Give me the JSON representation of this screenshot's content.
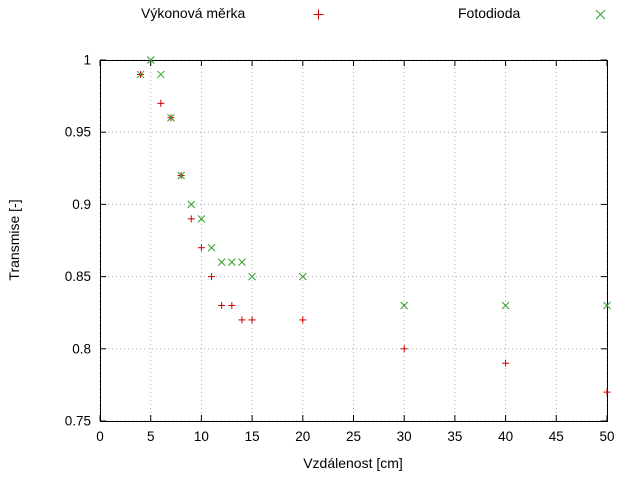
{
  "figure": {
    "xlabel": "Vzdálenost [cm]",
    "ylabel": "Transmise [-]"
  },
  "chart_data": {
    "type": "scatter",
    "title": "",
    "xlabel": "Vzdálenost [cm]",
    "ylabel": "Transmise [-]",
    "xlim": [
      0,
      50
    ],
    "ylim": [
      0.75,
      1
    ],
    "xticks": [
      0,
      5,
      10,
      15,
      20,
      25,
      30,
      35,
      40,
      45,
      50
    ],
    "yticks": [
      0.75,
      0.8,
      0.85,
      0.9,
      0.95,
      1
    ],
    "ytick_labels": [
      "0.75",
      "0.8",
      "0.85",
      "0.9",
      "0.95",
      "1"
    ],
    "grid": true,
    "grid_style": "dotted",
    "grid_color": "#b0b0b0",
    "legend_position": "top",
    "series": [
      {
        "name": "Výkonová měrka",
        "marker": "plus",
        "color": "#cc0000",
        "points": [
          [
            4,
            0.99
          ],
          [
            6,
            0.97
          ],
          [
            7,
            0.96
          ],
          [
            8,
            0.92
          ],
          [
            9,
            0.89
          ],
          [
            10,
            0.87
          ],
          [
            11,
            0.85
          ],
          [
            12,
            0.83
          ],
          [
            13,
            0.83
          ],
          [
            14,
            0.82
          ],
          [
            15,
            0.82
          ],
          [
            20,
            0.82
          ],
          [
            30,
            0.8
          ],
          [
            40,
            0.79
          ],
          [
            50,
            0.77
          ]
        ]
      },
      {
        "name": "Fotodioda",
        "marker": "cross",
        "color": "#33a02c",
        "points": [
          [
            4,
            0.99
          ],
          [
            5,
            1.0
          ],
          [
            6,
            0.99
          ],
          [
            7,
            0.96
          ],
          [
            8,
            0.92
          ],
          [
            9,
            0.9
          ],
          [
            10,
            0.89
          ],
          [
            11,
            0.87
          ],
          [
            12,
            0.86
          ],
          [
            13,
            0.86
          ],
          [
            14,
            0.86
          ],
          [
            15,
            0.85
          ],
          [
            20,
            0.85
          ],
          [
            30,
            0.83
          ],
          [
            40,
            0.83
          ],
          [
            50,
            0.83
          ]
        ]
      }
    ]
  }
}
